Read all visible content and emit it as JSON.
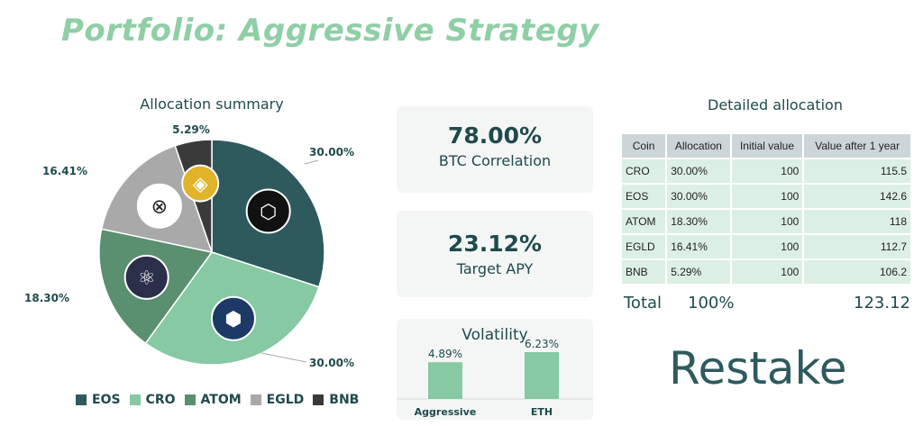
{
  "title": "Portfolio: Aggressive Strategy",
  "colors": {
    "EOS": "#2e5a5e",
    "CRO": "#86c9a2",
    "ATOM": "#5a8f70",
    "EGLD": "#a9a9a9",
    "BNB": "#3a3a3a",
    "accent": "#8fcfa6"
  },
  "chart_data": [
    {
      "type": "pie",
      "title": "Allocation summary",
      "legend": "bottom",
      "slices": [
        {
          "label": "EOS",
          "value": 30.0,
          "data_label": "30.00%"
        },
        {
          "label": "CRO",
          "value": 30.0,
          "data_label": "30.00%"
        },
        {
          "label": "ATOM",
          "value": 18.3,
          "data_label": "18.30%"
        },
        {
          "label": "EGLD",
          "value": 16.41,
          "data_label": "16.41%"
        },
        {
          "label": "BNB",
          "value": 5.29,
          "data_label": "5.29%"
        }
      ]
    },
    {
      "type": "bar",
      "title": "Volatility",
      "categories": [
        "Aggressive",
        "ETH"
      ],
      "values": [
        4.89,
        6.23
      ],
      "data_labels": [
        "4.89%",
        "6.23%"
      ]
    }
  ],
  "stats": [
    {
      "value": "78.00%",
      "label": "BTC Correlation"
    },
    {
      "value": "23.12%",
      "label": "Target APY"
    }
  ],
  "table": {
    "title": "Detailed allocation",
    "headers": [
      "Coin",
      "Allocation",
      "Initial value",
      "Value after 1 year"
    ],
    "rows": [
      [
        "CRO",
        "30.00%",
        "100",
        "115.5"
      ],
      [
        "EOS",
        "30.00%",
        "100",
        "142.6"
      ],
      [
        "ATOM",
        "18.30%",
        "100",
        "118"
      ],
      [
        "EGLD",
        "16.41%",
        "100",
        "112.7"
      ],
      [
        "BNB",
        "5.29%",
        "100",
        "106.2"
      ]
    ],
    "total": {
      "label": "Total",
      "allocation": "100%",
      "value": "123.12"
    }
  },
  "logo": "Restake"
}
